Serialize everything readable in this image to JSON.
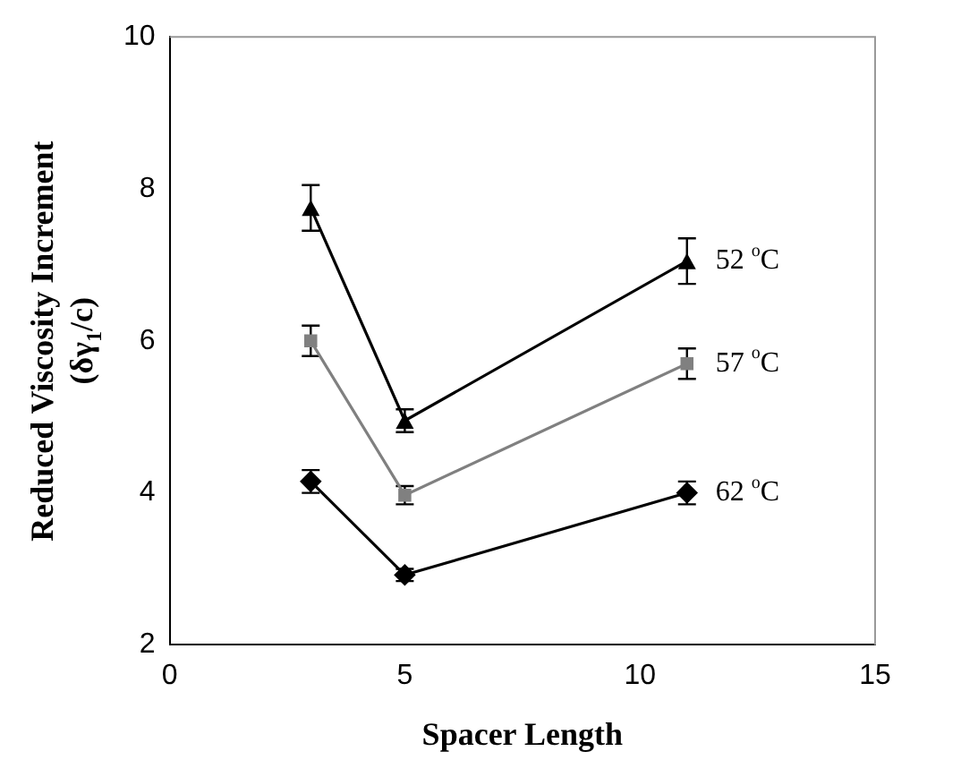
{
  "chart_data": {
    "type": "line",
    "xlabel": "Spacer Length",
    "ylabel": "Reduced Viscosity Increment\n(δγ$_{1}$/c)",
    "xlim": [
      0,
      15
    ],
    "xticks": [
      0,
      5,
      10,
      15
    ],
    "ylim": [
      2,
      10
    ],
    "yticks": [
      2,
      4,
      6,
      8,
      10
    ],
    "grid": false,
    "legend": false,
    "series": [
      {
        "name": "52 $^{o}$C",
        "color": "#000000",
        "marker": "triangle",
        "x": [
          3,
          5,
          11
        ],
        "values": [
          7.75,
          4.95,
          7.05
        ],
        "errors": [
          0.3,
          0.15,
          0.3
        ]
      },
      {
        "name": "57 $^{o}$C",
        "color": "#808080",
        "marker": "square",
        "x": [
          3,
          5,
          11
        ],
        "values": [
          6.0,
          3.97,
          5.7
        ],
        "errors": [
          0.2,
          0.12,
          0.2
        ]
      },
      {
        "name": "62 $^{o}$C",
        "color": "#000000",
        "marker": "diamond",
        "x": [
          3,
          5,
          11
        ],
        "values": [
          4.15,
          2.92,
          4.0
        ],
        "errors": [
          0.15,
          0.08,
          0.15
        ]
      }
    ]
  }
}
